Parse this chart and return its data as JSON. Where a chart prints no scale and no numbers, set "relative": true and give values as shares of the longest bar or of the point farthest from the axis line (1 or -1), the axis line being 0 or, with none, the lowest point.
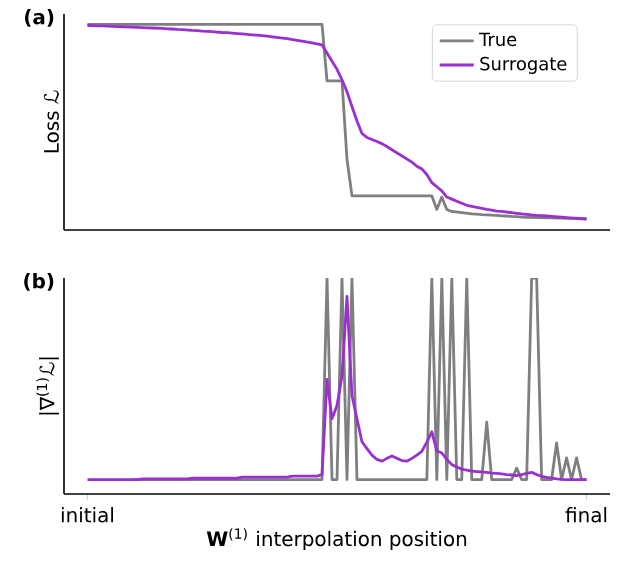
{
  "chart_data": [
    {
      "type": "line",
      "title": "(a)",
      "ylabel": "Loss ℒ",
      "relative": true,
      "legend": "top right",
      "categories": [
        null,
        null,
        null,
        null,
        null,
        null,
        null,
        null,
        null,
        null,
        null,
        null,
        null,
        null,
        null,
        null,
        null,
        null,
        null,
        null,
        null,
        null,
        null,
        null,
        null,
        null,
        null,
        null,
        null,
        null,
        null,
        null,
        null,
        null,
        null,
        null,
        null,
        null,
        null,
        null,
        null,
        null,
        null,
        null,
        null,
        null,
        null,
        null,
        null,
        null,
        null,
        null,
        null,
        null,
        null,
        null,
        null,
        null,
        null,
        null,
        null,
        null,
        null,
        null,
        null,
        null,
        null,
        null,
        null,
        null,
        null,
        null,
        null,
        null,
        null,
        null,
        null,
        null,
        null,
        null,
        null,
        null,
        null,
        null,
        null,
        null,
        null,
        null,
        null,
        null,
        null,
        null,
        null,
        null,
        null,
        null,
        null,
        null,
        null,
        null,
        null
      ],
      "series": [
        {
          "name": "True",
          "color": "#7f7f7f",
          "values": [
            1.0,
            1.0,
            1.0,
            1.0,
            1.0,
            1.0,
            1.0,
            1.0,
            1.0,
            1.0,
            1.0,
            1.0,
            1.0,
            1.0,
            1.0,
            1.0,
            1.0,
            1.0,
            1.0,
            1.0,
            1.0,
            1.0,
            1.0,
            1.0,
            1.0,
            1.0,
            1.0,
            1.0,
            1.0,
            1.0,
            1.0,
            1.0,
            1.0,
            1.0,
            1.0,
            1.0,
            1.0,
            1.0,
            1.0,
            1.0,
            1.0,
            1.0,
            1.0,
            1.0,
            1.0,
            1.0,
            1.0,
            1.0,
            0.725,
            0.725,
            0.725,
            0.725,
            0.344,
            0.166,
            0.166,
            0.166,
            0.166,
            0.166,
            0.166,
            0.166,
            0.166,
            0.166,
            0.166,
            0.166,
            0.166,
            0.166,
            0.166,
            0.166,
            0.166,
            0.166,
            0.1,
            0.16,
            0.1,
            0.09,
            0.087,
            0.084,
            0.081,
            0.078,
            0.077,
            0.075,
            0.074,
            0.072,
            0.071,
            0.069,
            0.068,
            0.066,
            0.065,
            0.063,
            0.062,
            0.061,
            0.06,
            0.06,
            0.059,
            0.059,
            0.058,
            0.058,
            0.057,
            0.057,
            0.057,
            0.056,
            0.056
          ]
        },
        {
          "name": "Surrogate",
          "color": "#9b30d0",
          "values": [
            0.994,
            0.993,
            0.992,
            0.992,
            0.991,
            0.99,
            0.989,
            0.988,
            0.987,
            0.986,
            0.985,
            0.984,
            0.983,
            0.982,
            0.981,
            0.98,
            0.978,
            0.977,
            0.975,
            0.974,
            0.972,
            0.97,
            0.969,
            0.967,
            0.966,
            0.964,
            0.962,
            0.96,
            0.959,
            0.957,
            0.955,
            0.953,
            0.951,
            0.949,
            0.947,
            0.945,
            0.942,
            0.939,
            0.936,
            0.933,
            0.93,
            0.926,
            0.922,
            0.918,
            0.914,
            0.91,
            0.905,
            0.9,
            0.86,
            0.82,
            0.781,
            0.73,
            0.672,
            0.6,
            0.53,
            0.469,
            0.45,
            0.44,
            0.43,
            0.42,
            0.406,
            0.39,
            0.375,
            0.36,
            0.345,
            0.33,
            0.31,
            0.297,
            0.27,
            0.23,
            0.21,
            0.19,
            0.16,
            0.15,
            0.14,
            0.13,
            0.12,
            0.115,
            0.11,
            0.105,
            0.1,
            0.096,
            0.092,
            0.09,
            0.087,
            0.084,
            0.081,
            0.078,
            0.076,
            0.073,
            0.071,
            0.07,
            0.068,
            0.066,
            0.064,
            0.062,
            0.06,
            0.058,
            0.056,
            0.054,
            0.053
          ]
        }
      ]
    },
    {
      "type": "line",
      "title": "(b)",
      "xlabel": "**W**$^{(1)}$ interpolation position",
      "ylabel": "|∇$^{(1)}$ℒ|",
      "relative": true,
      "tick_labels": "x",
      "categories": [
        "initial",
        null,
        null,
        null,
        null,
        null,
        null,
        null,
        null,
        null,
        null,
        null,
        null,
        null,
        null,
        null,
        null,
        null,
        null,
        null,
        null,
        null,
        null,
        null,
        null,
        null,
        null,
        null,
        null,
        null,
        null,
        null,
        null,
        null,
        null,
        null,
        null,
        null,
        null,
        null,
        null,
        null,
        null,
        null,
        null,
        null,
        null,
        null,
        null,
        null,
        null,
        null,
        null,
        null,
        null,
        null,
        null,
        null,
        null,
        null,
        null,
        null,
        null,
        null,
        null,
        null,
        null,
        null,
        null,
        null,
        null,
        null,
        null,
        null,
        null,
        null,
        null,
        null,
        null,
        null,
        null,
        null,
        null,
        null,
        null,
        null,
        null,
        null,
        null,
        null,
        null,
        null,
        null,
        null,
        null,
        null,
        null,
        null,
        null,
        null,
        "final"
      ],
      "series": [
        {
          "color": "#7f7f7f",
          "values": [
            null,
            null,
            null,
            null,
            null,
            null,
            null,
            null,
            null,
            0.067,
            0.067,
            0.067,
            0.067,
            0.067,
            0.067,
            0.067,
            0.067,
            0.067,
            0.067,
            0.067,
            0.067,
            0.067,
            0.067,
            0.067,
            0.067,
            0.067,
            0.067,
            0.067,
            0.067,
            0.067,
            0.067,
            0.067,
            0.067,
            0.067,
            0.067,
            0.067,
            0.067,
            0.067,
            0.067,
            0.067,
            0.067,
            0.067,
            0.067,
            0.067,
            0.067,
            0.067,
            0.067,
            0.067,
            1,
            0.067,
            0.067,
            1,
            0.067,
            1,
            0.067,
            0.067,
            0.067,
            0.067,
            0.067,
            0.067,
            0.067,
            0.067,
            0.067,
            0.067,
            0.067,
            0.067,
            0.067,
            0.067,
            0.067,
            1,
            0.067,
            1,
            0.067,
            1,
            0.067,
            0.067,
            1,
            0.067,
            0.067,
            0.067,
            0.333,
            0.067,
            0.067,
            0.067,
            0.067,
            0.067,
            0.12,
            0.067,
            0.067,
            1,
            1,
            0.067,
            0.067,
            0.067,
            0.236,
            0.067,
            0.167,
            0.067,
            0.167,
            0.067,
            0.067
          ]
        },
        {
          "color": "#9b30d0",
          "values": [
            0.067,
            0.067,
            0.067,
            0.067,
            0.067,
            0.067,
            0.067,
            0.067,
            0.067,
            0.067,
            0.067,
            0.07,
            0.07,
            0.07,
            0.07,
            0.07,
            0.07,
            0.07,
            0.07,
            0.07,
            0.07,
            0.073,
            0.073,
            0.073,
            0.073,
            0.073,
            0.073,
            0.073,
            0.073,
            0.073,
            0.073,
            0.078,
            0.078,
            0.078,
            0.078,
            0.078,
            0.078,
            0.078,
            0.078,
            0.078,
            0.078,
            0.083,
            0.083,
            0.083,
            0.083,
            0.083,
            0.083,
            0.09,
            0.53,
            0.348,
            0.41,
            0.545,
            0.915,
            0.455,
            0.348,
            0.242,
            0.21,
            0.18,
            0.16,
            0.152,
            0.165,
            0.176,
            0.165,
            0.155,
            0.152,
            0.165,
            0.18,
            0.197,
            0.24,
            0.288,
            0.2,
            0.19,
            0.16,
            0.136,
            0.125,
            0.115,
            0.11,
            0.106,
            0.104,
            0.102,
            0.1,
            0.097,
            0.095,
            0.093,
            0.09,
            0.088,
            0.085,
            0.09,
            0.095,
            0.1,
            0.09,
            0.082,
            0.077,
            0.073,
            0.07,
            0.068,
            0.067,
            0.067,
            0.067,
            0.067,
            0.067
          ]
        }
      ]
    }
  ]
}
